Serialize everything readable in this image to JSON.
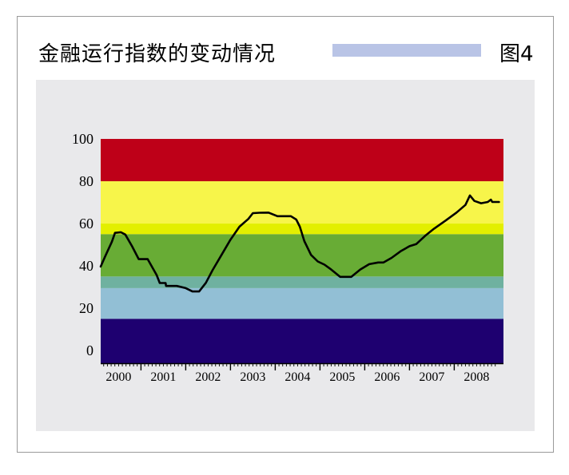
{
  "header": {
    "title": "金融运行指数的变动情况",
    "figure_label": "图4"
  },
  "chart_data": {
    "type": "line",
    "ylim": [
      -6,
      100
    ],
    "y_ticks": [
      0,
      20,
      40,
      60,
      80,
      100
    ],
    "y_tick_labels": [
      "0",
      "20",
      "40",
      "60",
      "80",
      "100"
    ],
    "xlim": [
      1999.6,
      2008.6
    ],
    "x_tick_labels": [
      "2000",
      "2001",
      "2002",
      "2003",
      "2004",
      "2005",
      "2006",
      "2007",
      "2008"
    ],
    "x_label_positions": [
      2000,
      2001,
      2002,
      2003,
      2004,
      2005,
      2006,
      2007,
      2008
    ],
    "bands": [
      {
        "from": -6,
        "to": 15,
        "color": "#1e0070"
      },
      {
        "from": 15,
        "to": 29.5,
        "color": "#92bfd5"
      },
      {
        "from": 29.5,
        "to": 35,
        "color": "#6fb1a0"
      },
      {
        "from": 35,
        "to": 55,
        "color": "#68ac35"
      },
      {
        "from": 55,
        "to": 60,
        "color": "#e3ef00"
      },
      {
        "from": 60,
        "to": 80,
        "color": "#f7f54a"
      },
      {
        "from": 80,
        "to": 100,
        "color": "#be0018"
      }
    ],
    "series": [
      {
        "color": "#000000",
        "points": [
          [
            1999.6,
            39.7
          ],
          [
            1999.7,
            44.5
          ],
          [
            1999.85,
            51.4
          ],
          [
            1999.92,
            55.6
          ],
          [
            2000.05,
            55.9
          ],
          [
            2000.15,
            54.8
          ],
          [
            2000.3,
            49.3
          ],
          [
            2000.45,
            43.2
          ],
          [
            2000.65,
            43.2
          ],
          [
            2000.85,
            35.7
          ],
          [
            2000.92,
            31.9
          ],
          [
            2001.05,
            31.9
          ],
          [
            2001.06,
            30.5
          ],
          [
            2001.3,
            30.5
          ],
          [
            2001.5,
            29.5
          ],
          [
            2001.65,
            27.9
          ],
          [
            2001.8,
            27.9
          ],
          [
            2001.95,
            32.0
          ],
          [
            2002.1,
            38.0
          ],
          [
            2002.3,
            45.2
          ],
          [
            2002.5,
            52.4
          ],
          [
            2002.7,
            58.5
          ],
          [
            2002.9,
            62.2
          ],
          [
            2003.0,
            64.9
          ],
          [
            2003.15,
            65.1
          ],
          [
            2003.35,
            65.2
          ],
          [
            2003.55,
            63.5
          ],
          [
            2003.85,
            63.5
          ],
          [
            2003.97,
            61.9
          ],
          [
            2004.05,
            58.5
          ],
          [
            2004.15,
            51.7
          ],
          [
            2004.3,
            45.2
          ],
          [
            2004.45,
            42.1
          ],
          [
            2004.6,
            40.6
          ],
          [
            2004.75,
            38.3
          ],
          [
            2004.95,
            34.8
          ],
          [
            2005.2,
            34.8
          ],
          [
            2005.4,
            38.3
          ],
          [
            2005.6,
            40.8
          ],
          [
            2005.8,
            41.6
          ],
          [
            2005.92,
            41.6
          ],
          [
            2006.1,
            43.8
          ],
          [
            2006.3,
            46.9
          ],
          [
            2006.5,
            49.3
          ],
          [
            2006.65,
            50.3
          ],
          [
            2006.85,
            54.2
          ],
          [
            2007.05,
            57.6
          ],
          [
            2007.3,
            61.3
          ],
          [
            2007.55,
            65.2
          ],
          [
            2007.75,
            68.8
          ],
          [
            2007.85,
            73.3
          ],
          [
            2007.95,
            70.7
          ],
          [
            2008.1,
            69.6
          ],
          [
            2008.25,
            70.2
          ],
          [
            2008.32,
            71.3
          ],
          [
            2008.35,
            70.2
          ],
          [
            2008.5,
            70.2
          ]
        ]
      }
    ],
    "colors": {
      "line": "#000000",
      "axis": "#000000",
      "plot_background": "#e9e9eb"
    }
  }
}
